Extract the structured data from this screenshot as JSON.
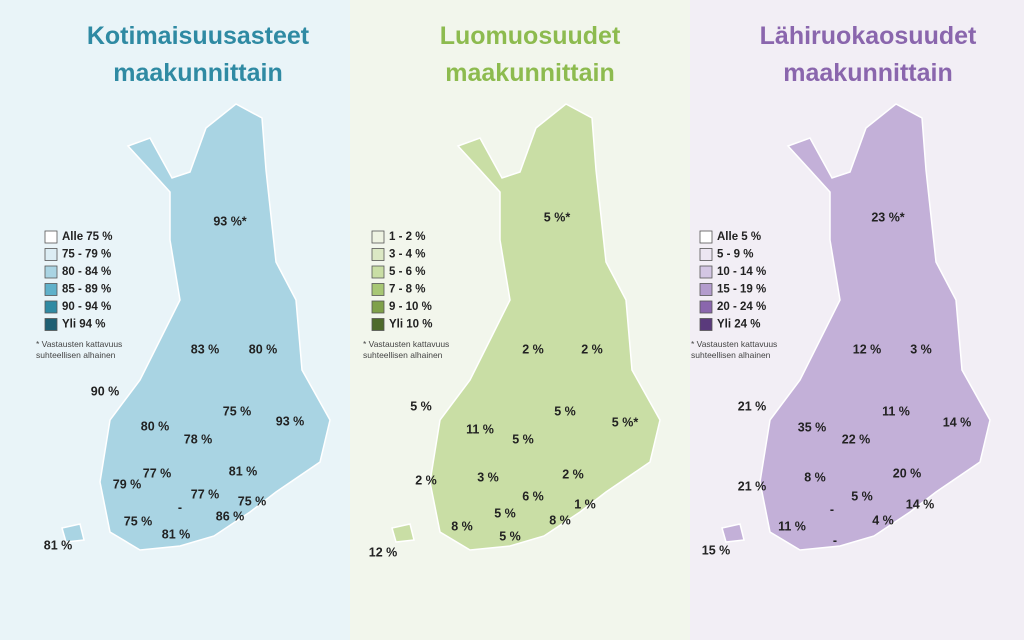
{
  "panels": [
    {
      "title": [
        "Kotimaisuusasteet",
        "maakunnittain"
      ],
      "title_color": "#2f8aa3",
      "legend": [
        {
          "label": "Alle 75 %",
          "color": "#ffffff"
        },
        {
          "label": "75 - 79 %",
          "color": "#dcedf4"
        },
        {
          "label": "80 - 84 %",
          "color": "#a9d4e3"
        },
        {
          "label": "85 - 89 %",
          "color": "#5fb1ca"
        },
        {
          "label": "90 - 94 %",
          "color": "#2f8aa3"
        },
        {
          "label": "Yli 94 %",
          "color": "#1e5f73"
        }
      ],
      "note": [
        "* Vastausten kattavuus",
        "suhteellisen alhainen"
      ],
      "labels": [
        "93 %*",
        "83 %",
        "80 %",
        "90 %",
        "80 %",
        "75 %",
        "93 %",
        "78 %",
        "77 %",
        "81 %",
        "79 %",
        "77 %",
        "75 %",
        "-",
        "86 %",
        "75 %",
        "81 %",
        "81 %"
      ]
    },
    {
      "title": [
        "Luomuosuudet",
        "maakunnittain"
      ],
      "title_color": "#8dbb4f",
      "legend": [
        {
          "label": "1 - 2 %",
          "color": "#eef3e2"
        },
        {
          "label": "3 - 4 %",
          "color": "#dbe8c4"
        },
        {
          "label": "5 - 6 %",
          "color": "#c9dea5"
        },
        {
          "label": "7 - 8 %",
          "color": "#a7c774"
        },
        {
          "label": "9 - 10 %",
          "color": "#7fa14a"
        },
        {
          "label": "Yli 10 %",
          "color": "#4e6b2b"
        }
      ],
      "note": [
        "* Vastausten kattavuus",
        "suhteellisen alhainen"
      ],
      "labels": [
        "5 %*",
        "2 %",
        "2 %",
        "5 %",
        "11 %",
        "5 %",
        "5 %*",
        "5 %",
        "2 %",
        "3 %",
        "2 %",
        "6 %",
        "1 %",
        "5 %",
        "8 %",
        "8 %",
        "5 %",
        "12 %"
      ]
    },
    {
      "title": [
        "Lähiruokaosuudet",
        "maakunnittain"
      ],
      "title_color": "#8a66ad",
      "legend": [
        {
          "label": "Alle 5 %",
          "color": "#ffffff"
        },
        {
          "label": "5 - 9 %",
          "color": "#ece6f2"
        },
        {
          "label": "10 - 14 %",
          "color": "#d3c6e3"
        },
        {
          "label": "15 - 19 %",
          "color": "#b39ccd"
        },
        {
          "label": "20 - 24 %",
          "color": "#8a66ad"
        },
        {
          "label": "Yli 24 %",
          "color": "#5a3a7c"
        }
      ],
      "note": [
        "* Vastausten kattavuus",
        "suhteellisen alhainen"
      ],
      "labels": [
        "23 %*",
        "12 %",
        "3 %",
        "21 %",
        "35 %",
        "11 %",
        "14 %",
        "22 %",
        "21 %",
        "8 %",
        "20 %",
        "5 %",
        "14 %",
        "11 %",
        "-",
        "4 %",
        "-",
        "15 %"
      ]
    }
  ]
}
